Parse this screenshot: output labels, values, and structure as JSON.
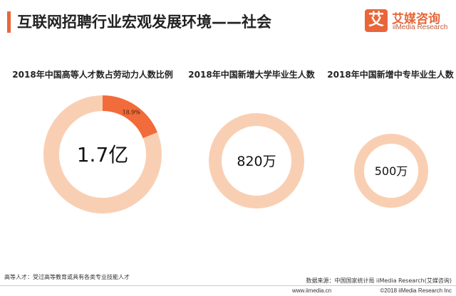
{
  "header": {
    "title": "互联网招聘行业宏观发展环境——社会"
  },
  "logo": {
    "mark": "艾",
    "name_cn": "艾媒咨询",
    "name_en": "iiMedia Research"
  },
  "colors": {
    "accent": "#e8663a",
    "ring_light": "#f9cfb3",
    "ring_highlight": "#f26b3a"
  },
  "chart_data": [
    {
      "type": "pie",
      "title": "2018年中国高等人才数占劳动力人数比例",
      "center_label": "1.7亿",
      "slices": [
        {
          "label": "18.9%",
          "value": 18.9
        },
        {
          "label": "",
          "value": 81.1
        }
      ]
    },
    {
      "type": "pie",
      "title": "2018年中国新增大学毕业生人数",
      "center_label": "820万",
      "slices": [
        {
          "label": "",
          "value": 100
        }
      ]
    },
    {
      "type": "pie",
      "title": "2018年中国新增中专毕业生人数",
      "center_label": "500万",
      "slices": [
        {
          "label": "",
          "value": 100
        }
      ]
    }
  ],
  "footer": {
    "footnote": "高等人才：受过高等教育或具有各类专业技能人才",
    "source": "数据来源：中国国家统计局  iiMedia Research(艾媒咨询)",
    "website": "www.iimedia.cn",
    "copyright": "©2018  iiMedia Research  Inc"
  }
}
